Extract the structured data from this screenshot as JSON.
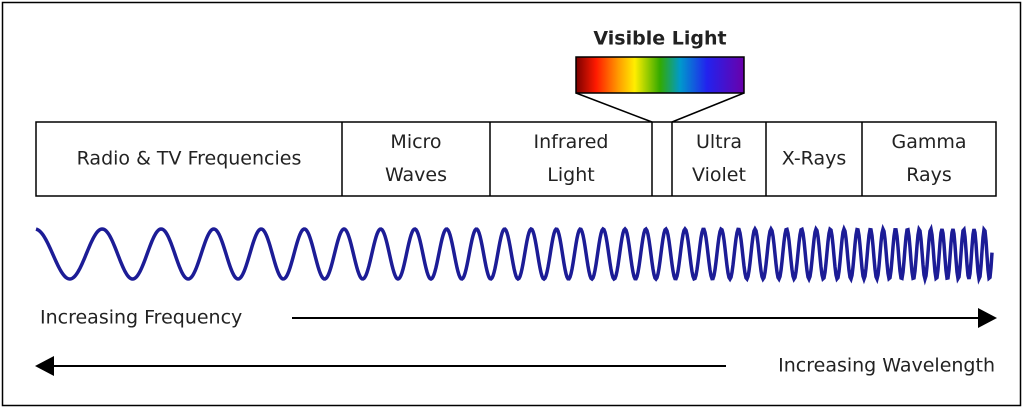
{
  "visible_label": "Visible Light",
  "bands": [
    {
      "lines": [
        "Radio & TV Frequencies"
      ]
    },
    {
      "lines": [
        "Micro",
        "Waves"
      ]
    },
    {
      "lines": [
        "Infrared",
        "Light"
      ]
    },
    {
      "lines": [
        "Ultra",
        "Violet"
      ]
    },
    {
      "lines": [
        "X-Rays"
      ]
    },
    {
      "lines": [
        "Gamma",
        "Rays"
      ]
    }
  ],
  "frequency_label": "Increasing Frequency",
  "wavelength_label": "Increasing Wavelength"
}
